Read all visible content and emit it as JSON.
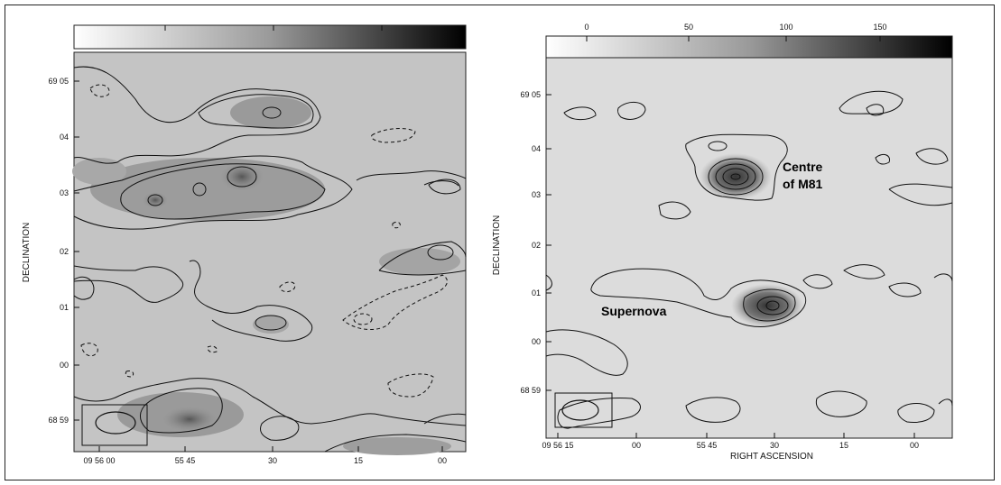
{
  "figure": {
    "left_map": {
      "ylabel": "DECLINATION",
      "dec_ticks": [
        "69 05",
        "04",
        "03",
        "02",
        "01",
        "00",
        "68 59"
      ],
      "ra_ticks": [
        "09 56 00",
        "55 45",
        "30",
        "15",
        "00"
      ]
    },
    "right_map": {
      "ylabel": "DECLINATION",
      "xlabel": "RIGHT ASCENSION",
      "dec_ticks": [
        "69 05",
        "04",
        "03",
        "02",
        "01",
        "00",
        "68 59"
      ],
      "ra_ticks": [
        "09 56 15",
        "00",
        "55 45",
        "30",
        "15",
        "00"
      ],
      "colorbar_ticks": [
        "0",
        "50",
        "100",
        "150"
      ],
      "annotations": {
        "centre_line1": "Centre",
        "centre_line2": "of M81",
        "supernova": "Supernova"
      }
    }
  }
}
